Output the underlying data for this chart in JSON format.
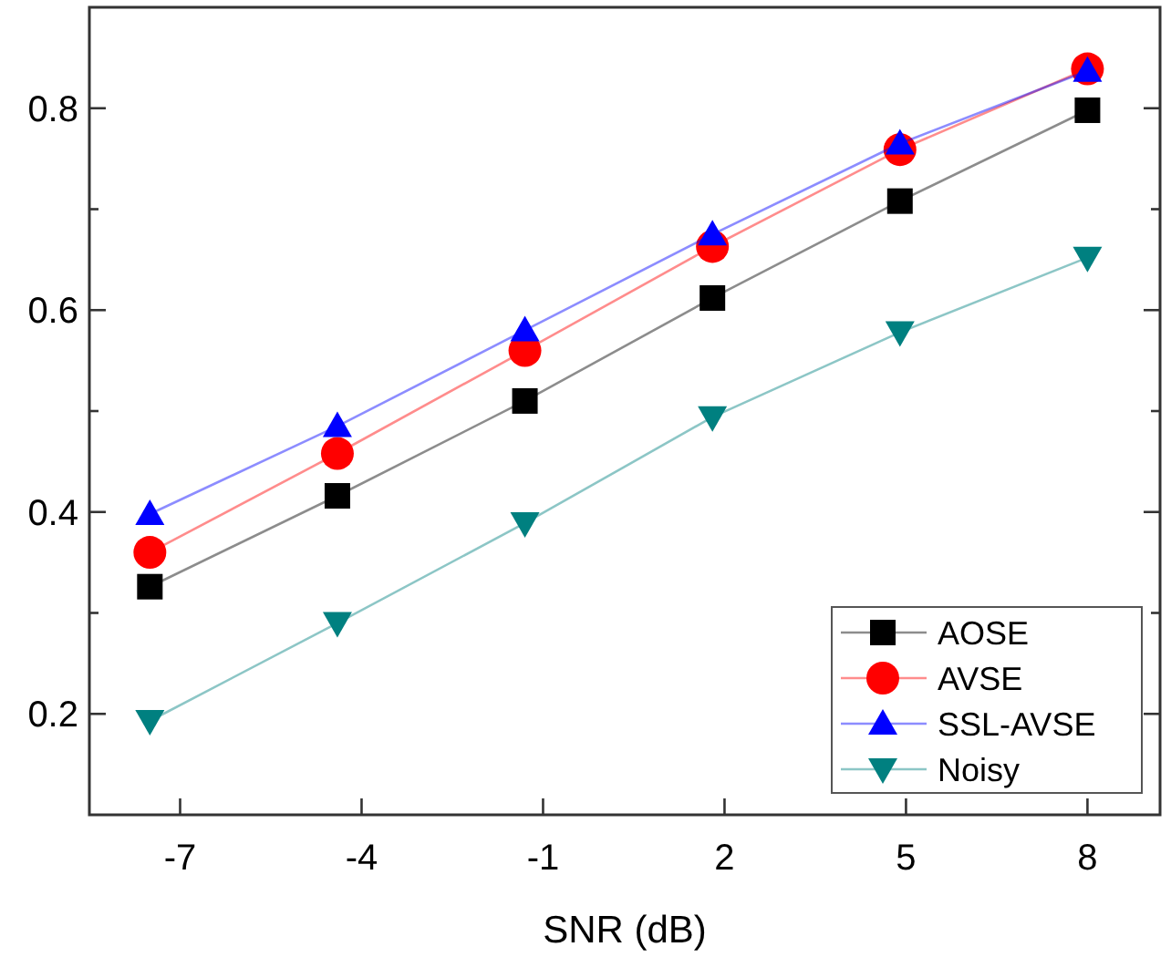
{
  "chart_data": {
    "type": "line",
    "xlabel": "SNR (dB)",
    "xlim": [
      -8.5,
      9.2
    ],
    "xticks": [
      -7,
      -4,
      -1,
      2,
      5,
      8
    ],
    "ylim": [
      0.1,
      0.9
    ],
    "yticks": [
      0.2,
      {
        "value": 0.3,
        "label": null
      },
      0.4,
      {
        "value": 0.5,
        "label": null
      },
      0.6,
      {
        "value": 0.7,
        "label": null
      },
      0.8
    ],
    "legend": "bottom right",
    "grid": false,
    "x": [
      -7.5,
      -4.4,
      -1.3,
      1.8,
      4.9,
      8.0
    ],
    "series": [
      {
        "name": "AOSE",
        "color": "#000000",
        "marker": "square",
        "values": [
          0.326,
          0.416,
          0.51,
          0.612,
          0.708,
          0.798
        ]
      },
      {
        "name": "AVSE",
        "color": "#ff0000",
        "marker": "circle",
        "values": [
          0.36,
          0.458,
          0.56,
          0.663,
          0.759,
          0.839
        ]
      },
      {
        "name": "SSL-AVSE",
        "color": "#0000ff",
        "marker": "triangle",
        "values": [
          0.398,
          0.485,
          0.58,
          0.675,
          0.765,
          0.837
        ]
      },
      {
        "name": "Noisy",
        "color": "#008080",
        "marker": "triangle-down",
        "values": [
          0.193,
          0.29,
          0.389,
          0.494,
          0.578,
          0.652
        ]
      }
    ]
  }
}
